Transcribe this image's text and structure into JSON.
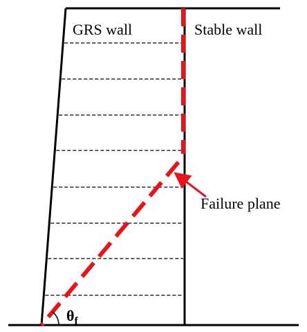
{
  "labels": {
    "grs_wall": "GRS wall",
    "stable_wall": "Stable wall",
    "failure_plane": "Failure plane",
    "angle": "θ",
    "angle_subscript": "f"
  }
}
